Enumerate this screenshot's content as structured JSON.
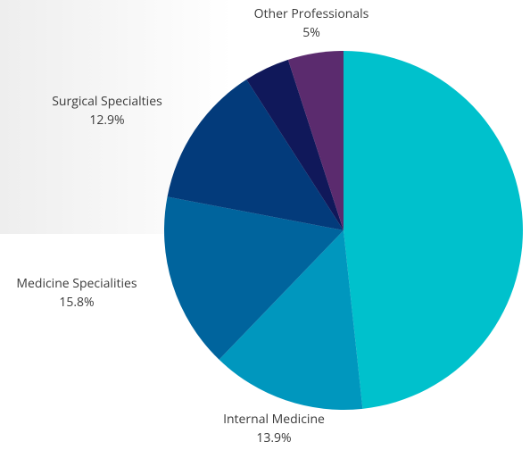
{
  "chart_data": {
    "type": "pie",
    "categories": [
      null,
      "Internal Medicine",
      "Medicine Specialities",
      "Surgical Specialties",
      null,
      "Other Professionals"
    ],
    "values": [
      48.3,
      13.9,
      15.8,
      12.9,
      4.1,
      5
    ],
    "value_labels": [
      null,
      "13.9%",
      "15.8%",
      "12.9%",
      null,
      "5%"
    ],
    "colors": [
      "#00c1cc",
      "#0097be",
      "#00649d",
      "#033b7b",
      "#10185a",
      "#5b2b6e"
    ]
  }
}
